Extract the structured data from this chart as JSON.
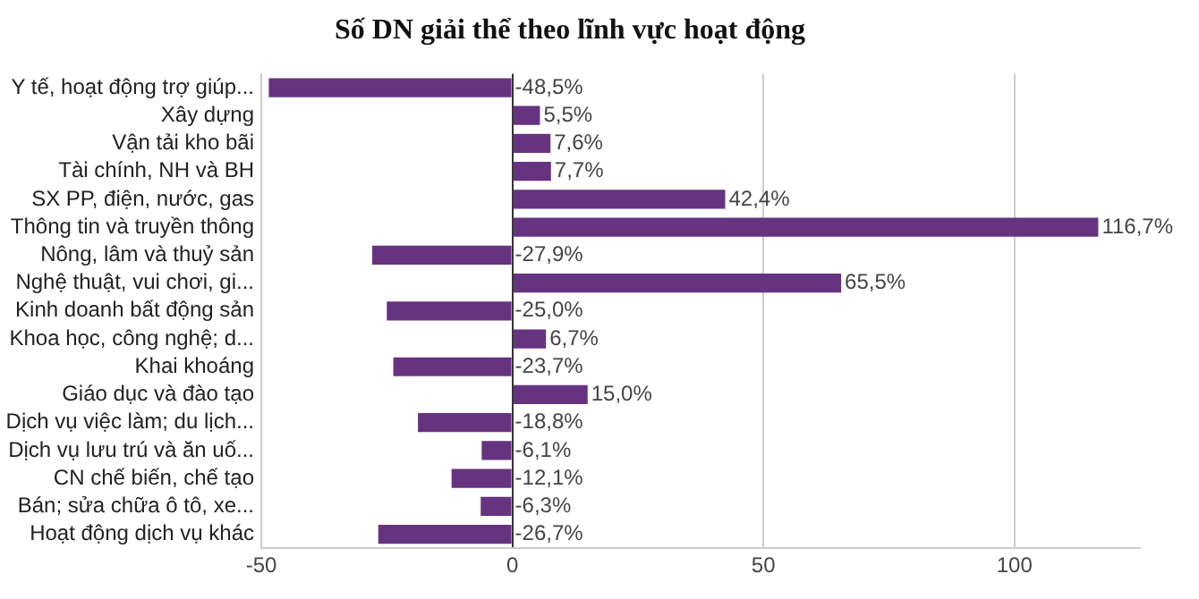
{
  "chart_data": {
    "type": "bar",
    "orientation": "horizontal",
    "title": "Số DN giải thể theo lĩnh vực hoạt động",
    "categories": [
      "Y tế, hoạt động trợ giúp...",
      "Xây dựng",
      "Vận tải kho bãi",
      "Tài chính, NH và BH",
      "SX PP, điện, nước, gas",
      "Thông tin và truyền thông",
      "Nông, lâm và thuỷ sản",
      "Nghệ thuật, vui chơi, gi...",
      "Kinh doanh bất động sản",
      "Khoa học, công nghệ; d...",
      "Khai khoáng",
      "Giáo dục và đào tạo",
      "Dịch vụ việc làm; du lịch...",
      "Dịch vụ lưu trú và ăn uố...",
      "CN chế biến, chế tạo",
      "Bán; sửa chữa ô tô, xe...",
      "Hoạt động dịch vụ khác"
    ],
    "values": [
      -48.5,
      5.5,
      7.6,
      7.7,
      42.4,
      116.7,
      -27.9,
      65.5,
      -25.0,
      6.7,
      -23.7,
      15.0,
      -18.8,
      -6.1,
      -12.1,
      -6.3,
      -26.7
    ],
    "value_labels": [
      "-48,5%",
      "5,5%",
      "7,6%",
      "7,7%",
      "42,4%",
      "116,7%",
      "-27,9%",
      "65,5%",
      "-25,0%",
      "6,7%",
      "-23,7%",
      "15,0%",
      "-18,8%",
      "-6,1%",
      "-12,1%",
      "-6,3%",
      "-26,7%"
    ],
    "color": "#663380",
    "xlim": [
      -50,
      125
    ],
    "xticks": [
      -50,
      0,
      50,
      100
    ],
    "grid": "x",
    "legend": false
  }
}
